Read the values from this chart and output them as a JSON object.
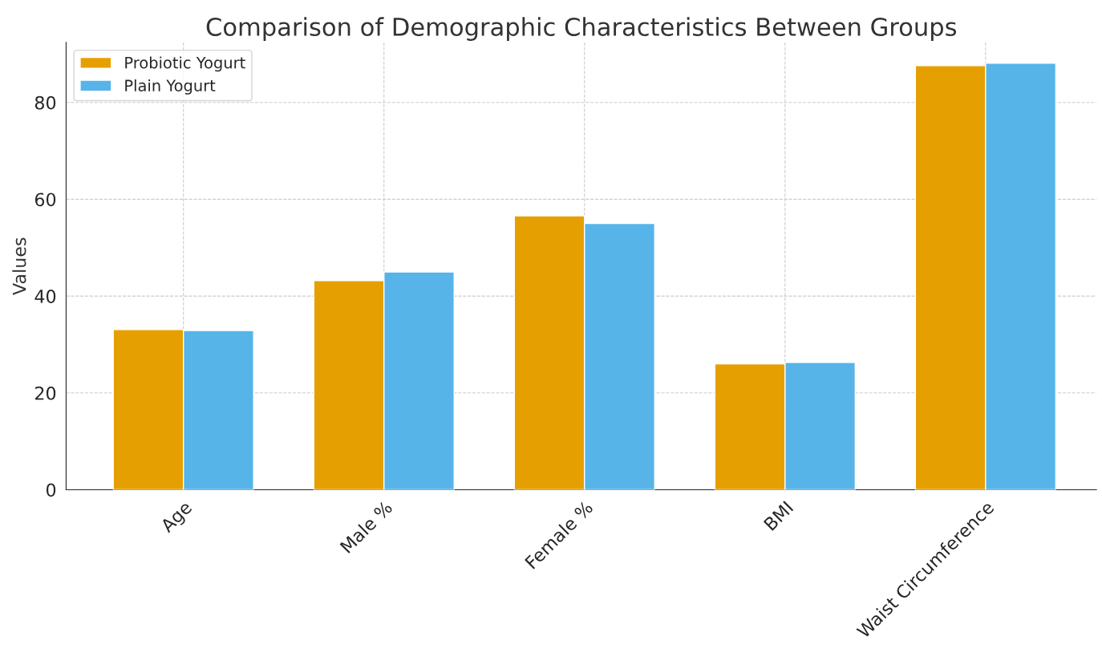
{
  "chart_data": {
    "type": "bar",
    "title": "Comparison of Demographic Characteristics Between Groups",
    "ylabel": "Values",
    "categories": [
      "Age",
      "Male %",
      "Female %",
      "BMI",
      "Waist Circumference"
    ],
    "series": [
      {
        "name": "Probiotic Yogurt",
        "color": "#e69f00",
        "values": [
          33.1,
          43.2,
          56.6,
          26.0,
          87.6
        ]
      },
      {
        "name": "Plain Yogurt",
        "color": "#56b4e9",
        "values": [
          32.9,
          45.0,
          55.0,
          26.3,
          88.1
        ]
      }
    ],
    "ylim": [
      0,
      92.4
    ],
    "yticks": [
      0,
      20,
      40,
      60,
      80
    ],
    "grid": true,
    "legend": "top left"
  }
}
